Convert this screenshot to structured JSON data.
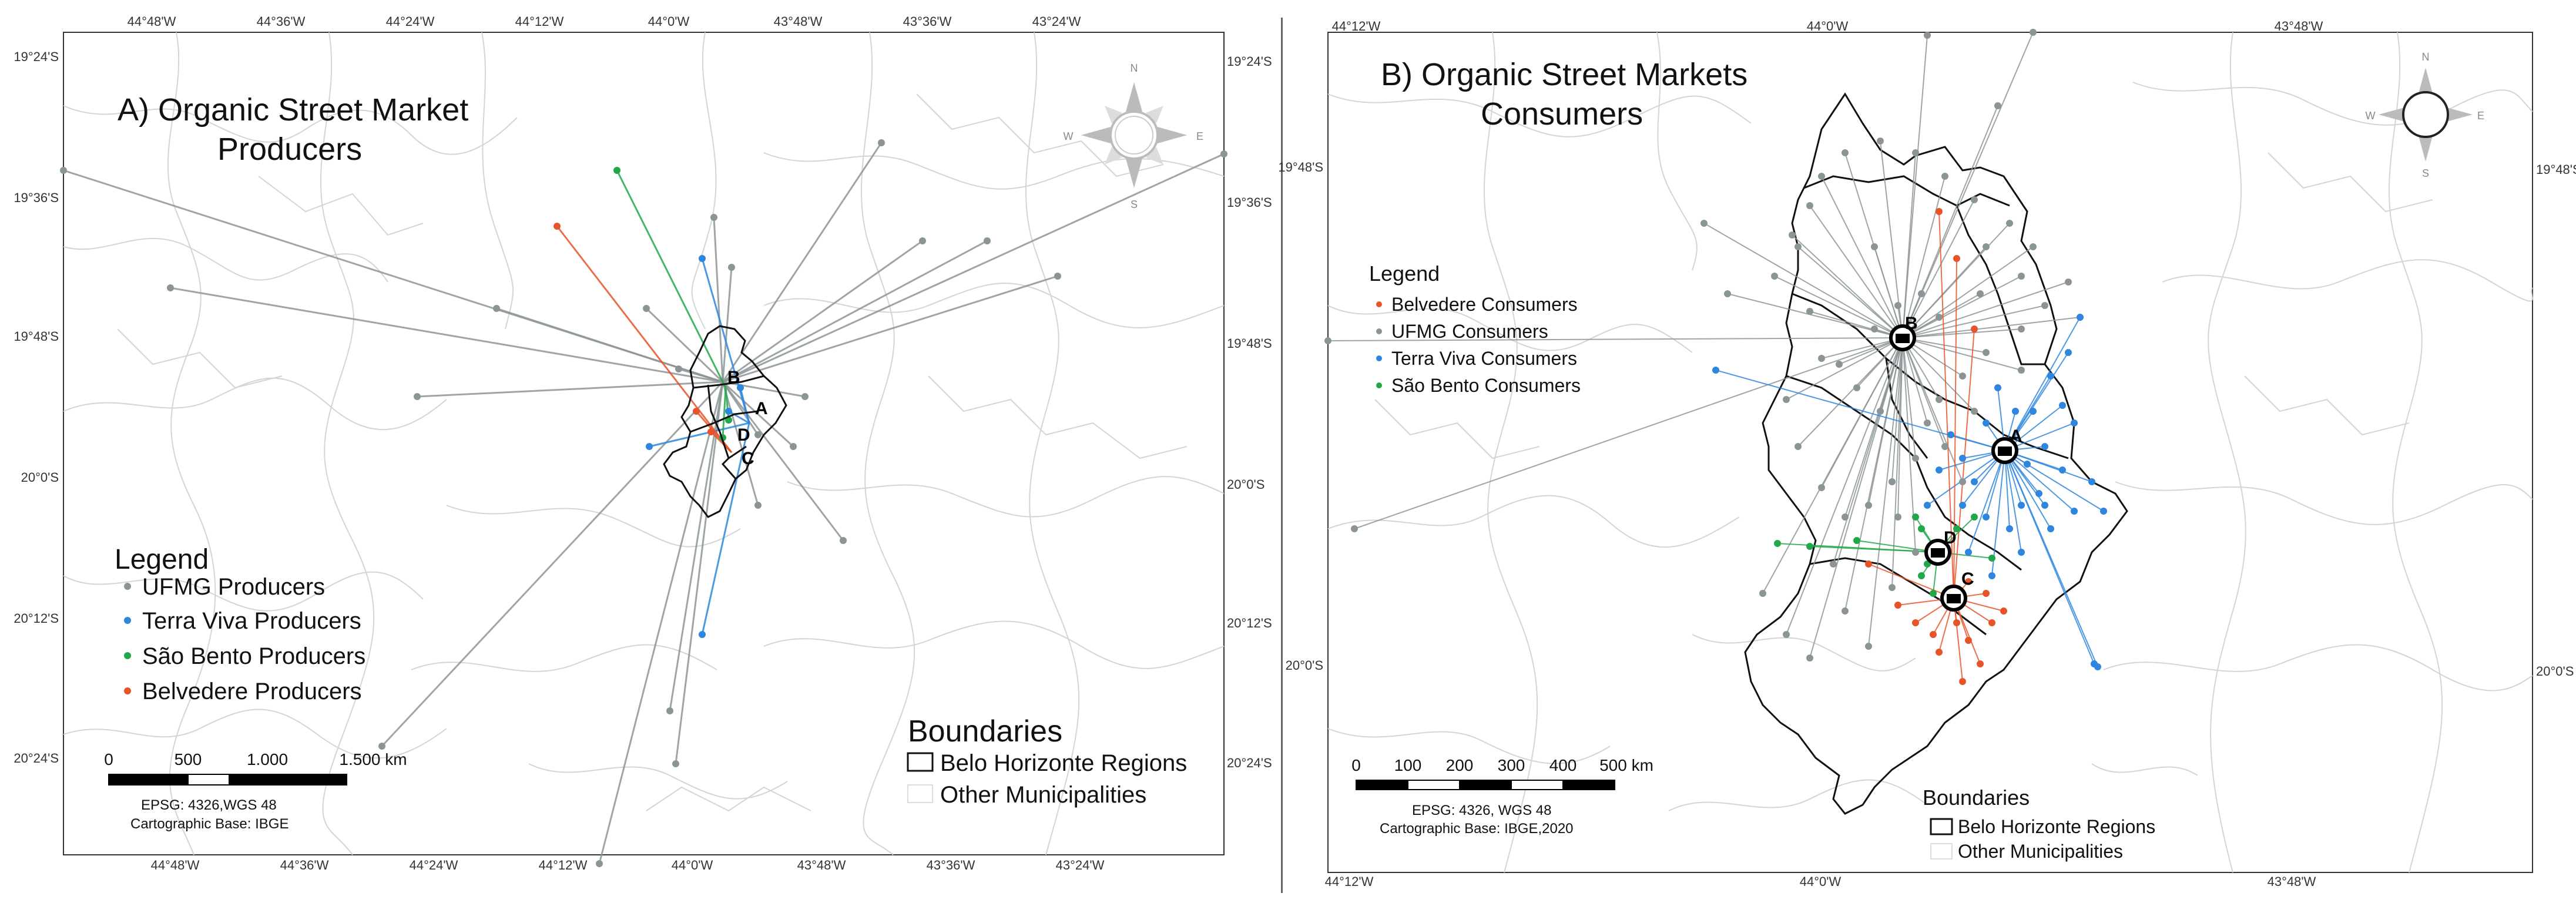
{
  "colors": {
    "ufmg": "#8c9596",
    "terra_viva": "#2e86de",
    "sao_bento": "#22a84a",
    "belvedere": "#e8542a",
    "region_line": "#111111",
    "municipality_line": "#d2d2d2"
  },
  "panel_a": {
    "title_line1": "A) Organic Street Market",
    "title_line2": "Producers",
    "top_ticks": [
      "44°48'W",
      "44°36'W",
      "44°24'W",
      "44°12'W",
      "44°0'W",
      "43°48'W",
      "43°36'W",
      "43°24'W"
    ],
    "bottom_ticks": [
      "44°48'W",
      "44°36'W",
      "44°24'W",
      "44°12'W",
      "44°0'W",
      "43°48'W",
      "43°36'W",
      "43°24'W"
    ],
    "left_ticks": [
      "19°24'S",
      "19°36'S",
      "19°48'S",
      "20°0'S",
      "20°12'S",
      "20°24'S"
    ],
    "right_ticks": [
      "19°24'S",
      "19°36'S",
      "19°48'S",
      "20°0'S",
      "20°12'S",
      "20°24'S"
    ],
    "legend": {
      "heading": "Legend",
      "items": [
        "UFMG Producers",
        "Terra Viva Producers",
        "São Bento Producers",
        "Belvedere Producers"
      ]
    },
    "boundaries": {
      "heading": "Boundaries",
      "items": [
        "Belo Horizonte Regions",
        "Other Municipalities"
      ]
    },
    "scale": {
      "labels": [
        "0",
        "500",
        "1.000",
        "1.500 km"
      ]
    },
    "credit_line1": "EPSG: 4326,WGS 48",
    "credit_line2": "Cartographic Base: IBGE",
    "compass": {
      "n": "N",
      "s": "S",
      "e": "E",
      "w": "W"
    },
    "market_labels": [
      "A",
      "B",
      "C",
      "D"
    ]
  },
  "panel_b": {
    "title_line1": "B) Organic Street Markets",
    "title_line2": "Consumers",
    "top_ticks": [
      "44°12'W",
      "44°0'W",
      "43°48'W"
    ],
    "bottom_ticks": [
      "44°12'W",
      "44°0'W",
      "43°48'W"
    ],
    "left_ticks": [
      "19°48'S",
      "20°0'S"
    ],
    "right_ticks": [
      "19°48'S",
      "20°0'S"
    ],
    "legend": {
      "heading": "Legend",
      "items": [
        "Belvedere Consumers",
        "UFMG Consumers",
        "Terra Viva Consumers",
        "São Bento Consumers"
      ]
    },
    "boundaries": {
      "heading": "Boundaries",
      "items": [
        "Belo Horizonte Regions",
        "Other Municipalities"
      ]
    },
    "scale": {
      "labels": [
        "0",
        "100",
        "200",
        "300",
        "400",
        "500 km"
      ]
    },
    "credit_line1": "EPSG: 4326, WGS 48",
    "credit_line2": "Cartographic Base: IBGE,2020",
    "compass": {
      "n": "N",
      "s": "S",
      "e": "E",
      "w": "W"
    },
    "market_labels": [
      "A",
      "B",
      "C",
      "D"
    ]
  }
}
